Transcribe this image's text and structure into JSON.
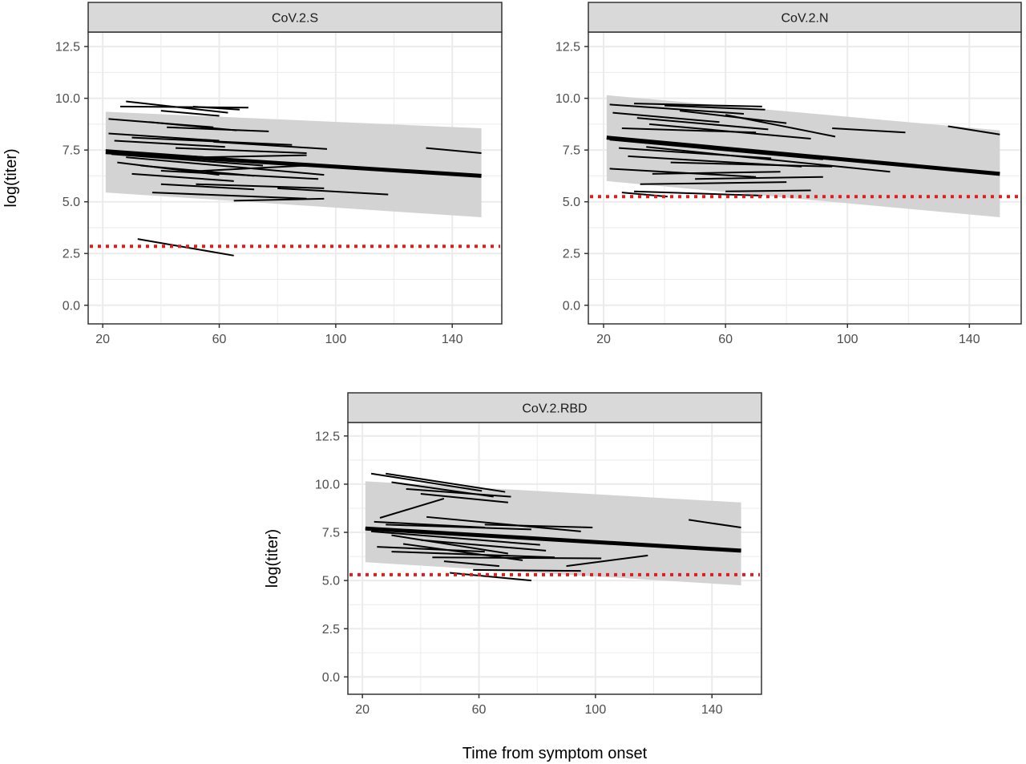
{
  "figure": {
    "xlabel": "Time from symptom onset",
    "ylabel": "log(titer)"
  },
  "colors": {
    "ribbon": "#d3d3d3",
    "grid": "#ebebeb",
    "trajectory": "#000000",
    "threshold": "#e41a1c",
    "strip_fill": "#d9d9d9",
    "panel_border": "#333333"
  },
  "chart_data": [
    {
      "type": "line",
      "title": "CoV.2.S",
      "xlabel": "",
      "ylabel": "log(titer)",
      "xlim": [
        15,
        157
      ],
      "ylim": [
        -0.9,
        13.2
      ],
      "x_ticks": [
        20,
        60,
        100,
        140
      ],
      "y_ticks": [
        0.0,
        2.5,
        5.0,
        7.5,
        10.0,
        12.5
      ],
      "x_tick_labels": [
        "20",
        "60",
        "100",
        "140"
      ],
      "y_tick_labels": [
        "0.0",
        "2.5",
        "5.0",
        "7.5",
        "10.0",
        "12.5"
      ],
      "grid": true,
      "threshold": 2.85,
      "ribbon": {
        "x": [
          21,
          150
        ],
        "lower": [
          5.45,
          4.25
        ],
        "upper": [
          9.35,
          8.55
        ]
      },
      "fit": {
        "x": [
          21,
          150
        ],
        "y": [
          7.4,
          6.25
        ]
      },
      "segments": [
        [
          [
            28,
            9.85
          ],
          [
            63,
            9.3
          ]
        ],
        [
          [
            26,
            9.6
          ],
          [
            70,
            9.55
          ]
        ],
        [
          [
            51,
            9.6
          ],
          [
            67,
            9.45
          ]
        ],
        [
          [
            40,
            9.4
          ],
          [
            60,
            9.15
          ]
        ],
        [
          [
            22,
            9.0
          ],
          [
            58,
            8.6
          ]
        ],
        [
          [
            36,
            8.85
          ],
          [
            66,
            8.45
          ]
        ],
        [
          [
            42,
            8.6
          ],
          [
            77,
            8.4
          ]
        ],
        [
          [
            22,
            8.3
          ],
          [
            60,
            7.95
          ]
        ],
        [
          [
            30,
            8.1
          ],
          [
            85,
            7.75
          ]
        ],
        [
          [
            24,
            7.95
          ],
          [
            62,
            7.65
          ]
        ],
        [
          [
            45,
            7.6
          ],
          [
            90,
            7.35
          ]
        ],
        [
          [
            58,
            7.9
          ],
          [
            97,
            7.55
          ]
        ],
        [
          [
            21,
            7.5
          ],
          [
            110,
            6.6
          ]
        ],
        [
          [
            23,
            7.3
          ],
          [
            75,
            6.75
          ]
        ],
        [
          [
            28,
            7.15
          ],
          [
            96,
            6.3
          ]
        ],
        [
          [
            25,
            6.9
          ],
          [
            60,
            6.3
          ]
        ],
        [
          [
            33,
            6.75
          ],
          [
            72,
            6.25
          ]
        ],
        [
          [
            40,
            6.5
          ],
          [
            94,
            6.1
          ]
        ],
        [
          [
            30,
            6.35
          ],
          [
            65,
            6.0
          ]
        ],
        [
          [
            48,
            6.45
          ],
          [
            90,
            6.75
          ]
        ],
        [
          [
            40,
            5.85
          ],
          [
            72,
            5.6
          ]
        ],
        [
          [
            37,
            5.45
          ],
          [
            90,
            5.15
          ]
        ],
        [
          [
            52,
            5.85
          ],
          [
            96,
            5.65
          ]
        ],
        [
          [
            65,
            5.05
          ],
          [
            96,
            5.15
          ]
        ],
        [
          [
            80,
            5.65
          ],
          [
            118,
            5.35
          ]
        ],
        [
          [
            55,
            7.15
          ],
          [
            90,
            7.25
          ]
        ],
        [
          [
            131,
            7.6
          ],
          [
            150,
            7.35
          ]
        ],
        [
          [
            32,
            3.2
          ],
          [
            65,
            2.4
          ]
        ]
      ]
    },
    {
      "type": "line",
      "title": "CoV.2.N",
      "xlabel": "",
      "ylabel": "",
      "xlim": [
        15,
        157
      ],
      "ylim": [
        -0.9,
        13.2
      ],
      "x_ticks": [
        20,
        60,
        100,
        140
      ],
      "y_ticks": [
        0.0,
        2.5,
        5.0,
        7.5,
        10.0,
        12.5
      ],
      "x_tick_labels": [
        "20",
        "60",
        "100",
        "140"
      ],
      "y_tick_labels": [
        "0.0",
        "2.5",
        "5.0",
        "7.5",
        "10.0",
        "12.5"
      ],
      "grid": true,
      "threshold": 5.25,
      "ribbon": {
        "x": [
          21,
          150
        ],
        "lower": [
          6.0,
          4.25
        ],
        "upper": [
          10.15,
          8.45
        ]
      },
      "fit": {
        "x": [
          21,
          150
        ],
        "y": [
          8.1,
          6.35
        ]
      },
      "segments": [
        [
          [
            22,
            9.7
          ],
          [
            66,
            9.25
          ]
        ],
        [
          [
            30,
            9.75
          ],
          [
            72,
            9.6
          ]
        ],
        [
          [
            40,
            9.65
          ],
          [
            73,
            9.45
          ]
        ],
        [
          [
            23,
            9.3
          ],
          [
            58,
            8.85
          ]
        ],
        [
          [
            31,
            9.05
          ],
          [
            74,
            8.5
          ]
        ],
        [
          [
            45,
            9.4
          ],
          [
            80,
            8.8
          ]
        ],
        [
          [
            60,
            9.2
          ],
          [
            96,
            8.15
          ]
        ],
        [
          [
            26,
            8.55
          ],
          [
            70,
            8.35
          ]
        ],
        [
          [
            35,
            8.75
          ],
          [
            88,
            8.05
          ]
        ],
        [
          [
            22,
            8.0
          ],
          [
            92,
            7.05
          ]
        ],
        [
          [
            25,
            7.6
          ],
          [
            75,
            7.1
          ]
        ],
        [
          [
            28,
            7.2
          ],
          [
            85,
            6.7
          ]
        ],
        [
          [
            34,
            7.65
          ],
          [
            114,
            6.45
          ]
        ],
        [
          [
            22,
            6.6
          ],
          [
            70,
            6.2
          ]
        ],
        [
          [
            36,
            6.35
          ],
          [
            78,
            6.45
          ]
        ],
        [
          [
            42,
            6.9
          ],
          [
            95,
            6.7
          ]
        ],
        [
          [
            50,
            6.1
          ],
          [
            92,
            6.2
          ]
        ],
        [
          [
            32,
            5.85
          ],
          [
            80,
            5.95
          ]
        ],
        [
          [
            30,
            5.5
          ],
          [
            72,
            5.3
          ]
        ],
        [
          [
            26,
            5.45
          ],
          [
            41,
            5.25
          ]
        ],
        [
          [
            60,
            5.5
          ],
          [
            88,
            5.55
          ]
        ],
        [
          [
            95,
            8.55
          ],
          [
            119,
            8.35
          ]
        ],
        [
          [
            133,
            8.65
          ],
          [
            150,
            8.25
          ]
        ]
      ]
    },
    {
      "type": "line",
      "title": "CoV.2.RBD",
      "xlabel": "Time from symptom onset",
      "ylabel": "log(titer)",
      "xlim": [
        15,
        157
      ],
      "ylim": [
        -0.9,
        13.2
      ],
      "x_ticks": [
        20,
        60,
        100,
        140
      ],
      "y_ticks": [
        0.0,
        2.5,
        5.0,
        7.5,
        10.0,
        12.5
      ],
      "x_tick_labels": [
        "20",
        "60",
        "100",
        "140"
      ],
      "y_tick_labels": [
        "0.0",
        "2.5",
        "5.0",
        "7.5",
        "10.0",
        "12.5"
      ],
      "grid": true,
      "threshold": 5.3,
      "ribbon": {
        "x": [
          21,
          150
        ],
        "lower": [
          5.95,
          4.75
        ],
        "upper": [
          10.15,
          9.05
        ]
      },
      "fit": {
        "x": [
          21,
          150
        ],
        "y": [
          7.7,
          6.55
        ]
      },
      "segments": [
        [
          [
            23,
            10.55
          ],
          [
            61,
            9.65
          ]
        ],
        [
          [
            28,
            10.55
          ],
          [
            69,
            9.6
          ]
        ],
        [
          [
            30,
            10.1
          ],
          [
            65,
            9.35
          ]
        ],
        [
          [
            35,
            9.75
          ],
          [
            71,
            9.35
          ]
        ],
        [
          [
            26,
            8.25
          ],
          [
            48,
            9.25
          ]
        ],
        [
          [
            40,
            9.5
          ],
          [
            70,
            9.05
          ]
        ],
        [
          [
            24,
            8.05
          ],
          [
            62,
            7.75
          ]
        ],
        [
          [
            28,
            7.9
          ],
          [
            78,
            7.65
          ]
        ],
        [
          [
            42,
            8.3
          ],
          [
            95,
            7.55
          ]
        ],
        [
          [
            21,
            7.7
          ],
          [
            73,
            7.2
          ]
        ],
        [
          [
            23,
            7.55
          ],
          [
            81,
            6.85
          ]
        ],
        [
          [
            30,
            7.35
          ],
          [
            70,
            6.4
          ]
        ],
        [
          [
            34,
            6.9
          ],
          [
            75,
            6.05
          ]
        ],
        [
          [
            25,
            6.75
          ],
          [
            62,
            6.5
          ]
        ],
        [
          [
            30,
            6.5
          ],
          [
            86,
            6.2
          ]
        ],
        [
          [
            44,
            6.2
          ],
          [
            102,
            6.15
          ]
        ],
        [
          [
            62,
            7.9
          ],
          [
            99,
            7.75
          ]
        ],
        [
          [
            40,
            7.1
          ],
          [
            83,
            6.55
          ]
        ],
        [
          [
            48,
            6.0
          ],
          [
            67,
            5.75
          ]
        ],
        [
          [
            58,
            5.55
          ],
          [
            95,
            5.5
          ]
        ],
        [
          [
            50,
            5.4
          ],
          [
            78,
            5.0
          ]
        ],
        [
          [
            90,
            5.75
          ],
          [
            118,
            6.3
          ]
        ],
        [
          [
            132,
            8.15
          ],
          [
            150,
            7.75
          ]
        ]
      ]
    }
  ]
}
